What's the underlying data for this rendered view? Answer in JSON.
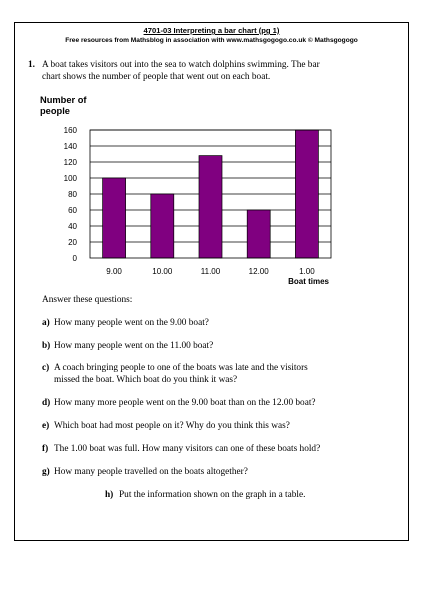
{
  "header": {
    "title": "4701-03    Interpreting a bar chart  (pg 1)",
    "subtitle": "Free resources from Mathsblog in association with www.mathsgogogo.co.uk    © Mathsgogogo"
  },
  "question1": {
    "number": "1.",
    "line1": "A boat takes visitors out into the sea to watch dolphins swimming. The bar",
    "line2": "chart shows the number of people that went out on each boat."
  },
  "chart_data": {
    "type": "bar",
    "ylabel_line1": "Number of",
    "ylabel_line2": "people",
    "xlabel": "Boat times",
    "categories": [
      "9.00",
      "10.00",
      "11.00",
      "12.00",
      "1.00"
    ],
    "values": [
      100,
      80,
      128,
      60,
      160
    ],
    "yticks": [
      "0",
      "20",
      "40",
      "60",
      "80",
      "100",
      "120",
      "140",
      "160"
    ],
    "ylim": [
      0,
      160
    ],
    "grid": true,
    "bar_color": "#800080"
  },
  "answer_intro": "Answer these questions:",
  "questions": [
    {
      "letter": "a)",
      "text": "How many people went on the  9.00 boat?"
    },
    {
      "letter": "b)",
      "text": "How many people went on the 11.00 boat?"
    },
    {
      "letter": "c)",
      "text": "A coach bringing people to one of the boats was late and the visitors",
      "text2": "missed the boat. Which boat do you think it was?"
    },
    {
      "letter": "d)",
      "text": "How many more people went on the 9.00 boat than on the 12.00 boat?"
    },
    {
      "letter": "e)",
      "text": "Which boat had most people on it?  Why do you think this was?"
    },
    {
      "letter": "f)",
      "text": "The 1.00 boat was full. How many visitors can one of these boats hold?"
    },
    {
      "letter": "g)",
      "text": "How many people travelled on the boats altogether?"
    },
    {
      "letter": "h)",
      "text": "Put the information shown on the graph in a table."
    }
  ]
}
